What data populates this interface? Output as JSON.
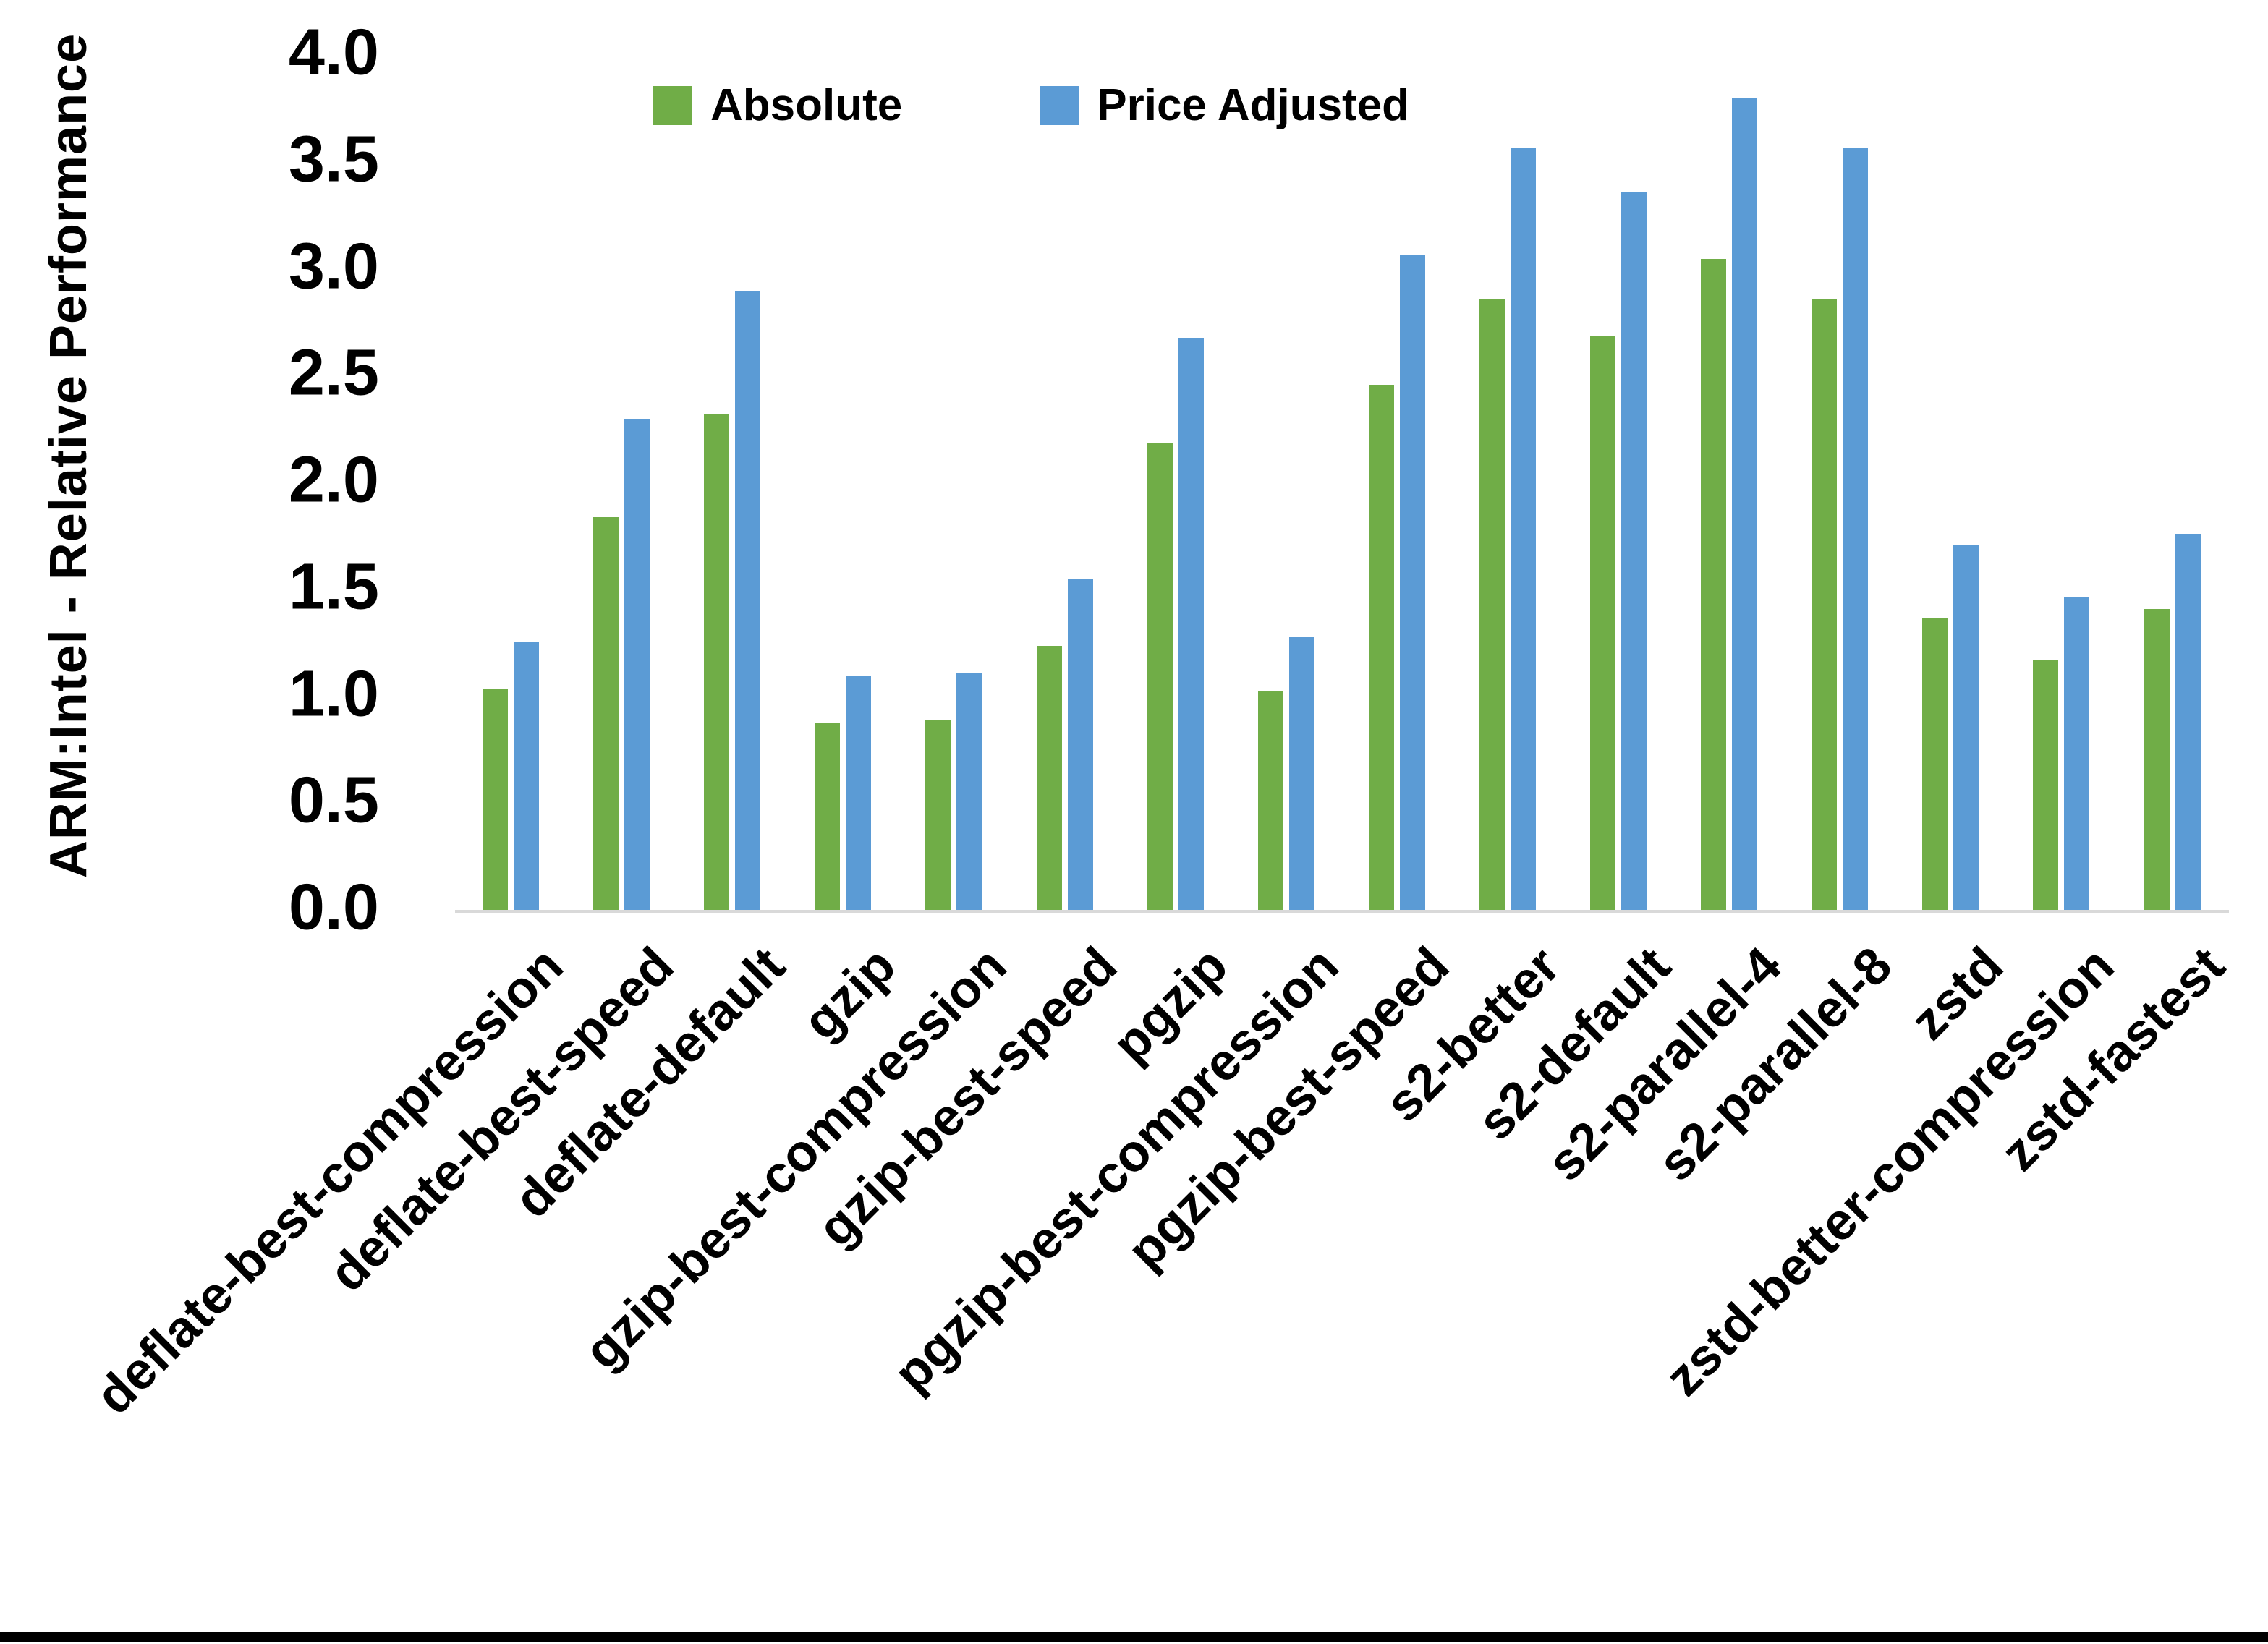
{
  "chart_data": {
    "type": "bar",
    "title": "",
    "xlabel": "",
    "ylabel": "ARM:Intel - Relative Performance",
    "ylim": [
      0.0,
      4.0
    ],
    "ytick_step": 0.5,
    "yticks": [
      "4.0",
      "3.5",
      "3.0",
      "2.5",
      "2.0",
      "1.5",
      "1.0",
      "0.5",
      "0.0"
    ],
    "grid": false,
    "legend_position": "top-center",
    "categories": [
      "deflate-best-compression",
      "deflate-best-speed",
      "deflate-default",
      "gzip",
      "gzip-best-compression",
      "gzip-best-speed",
      "pgzip",
      "pgzip-best-compression",
      "pgzip-best-speed",
      "s2-better",
      "s2-default",
      "s2-parallel-4",
      "s2-parallel-8",
      "zstd",
      "zstd-better-compression",
      "zstd-fastest"
    ],
    "series": [
      {
        "name": "Absolute",
        "color": "#70AD47",
        "values": [
          1.04,
          1.84,
          2.32,
          0.88,
          0.89,
          1.24,
          2.19,
          1.03,
          2.46,
          2.86,
          2.69,
          3.05,
          2.86,
          1.37,
          1.17,
          1.41
        ]
      },
      {
        "name": "Price Adjusted",
        "color": "#5B9BD5",
        "values": [
          1.26,
          2.3,
          2.9,
          1.1,
          1.11,
          1.55,
          2.68,
          1.28,
          3.07,
          3.57,
          3.36,
          3.8,
          3.57,
          1.71,
          1.47,
          1.76
        ]
      }
    ],
    "axis_line_color": "#D9D9D9",
    "text_color": "#000000"
  }
}
